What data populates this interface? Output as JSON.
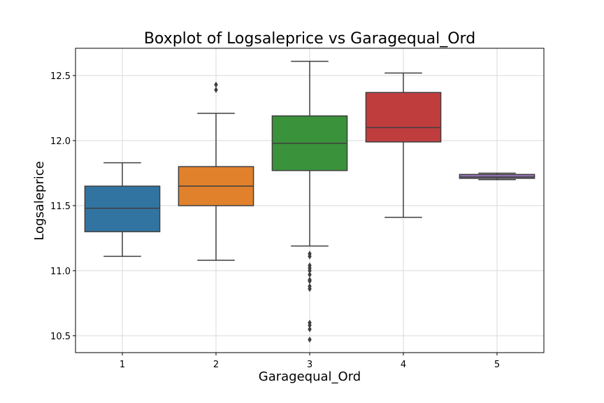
{
  "chart_data": {
    "type": "boxplot",
    "title": "Boxplot of Logsaleprice vs Garagequal_Ord",
    "xlabel": "Garagequal_Ord",
    "ylabel": "Logsaleprice",
    "categories": [
      "1",
      "2",
      "3",
      "4",
      "5"
    ],
    "ylim": [
      10.37,
      12.71
    ],
    "yticks": [
      10.5,
      11.0,
      11.5,
      12.0,
      12.5
    ],
    "ytick_labels": [
      "10.5",
      "11.0",
      "11.5",
      "12.0",
      "12.5"
    ],
    "grid": true,
    "boxes": [
      {
        "category": "1",
        "whisker_low": 11.11,
        "q1": 11.3,
        "median": 11.48,
        "q3": 11.65,
        "whisker_high": 11.83,
        "outliers": [],
        "color": "#3274a1"
      },
      {
        "category": "2",
        "whisker_low": 11.08,
        "q1": 11.5,
        "median": 11.65,
        "q3": 11.8,
        "whisker_high": 12.21,
        "outliers": [
          12.39,
          12.43
        ],
        "color": "#e1812c"
      },
      {
        "category": "3",
        "whisker_low": 11.19,
        "q1": 11.77,
        "median": 11.98,
        "q3": 12.19,
        "whisker_high": 12.61,
        "outliers": [
          11.13,
          11.11,
          11.04,
          11.02,
          11.0,
          10.97,
          10.93,
          10.92,
          10.88,
          10.86,
          10.6,
          10.58,
          10.55,
          10.47
        ],
        "color": "#3a923a"
      },
      {
        "category": "4",
        "whisker_low": 11.41,
        "q1": 11.99,
        "median": 12.1,
        "q3": 12.37,
        "whisker_high": 12.52,
        "outliers": [],
        "color": "#c03d3e"
      },
      {
        "category": "5",
        "whisker_low": 11.7,
        "q1": 11.71,
        "median": 11.72,
        "q3": 11.74,
        "whisker_high": 11.75,
        "outliers": [],
        "color": "#9372b2"
      }
    ]
  }
}
